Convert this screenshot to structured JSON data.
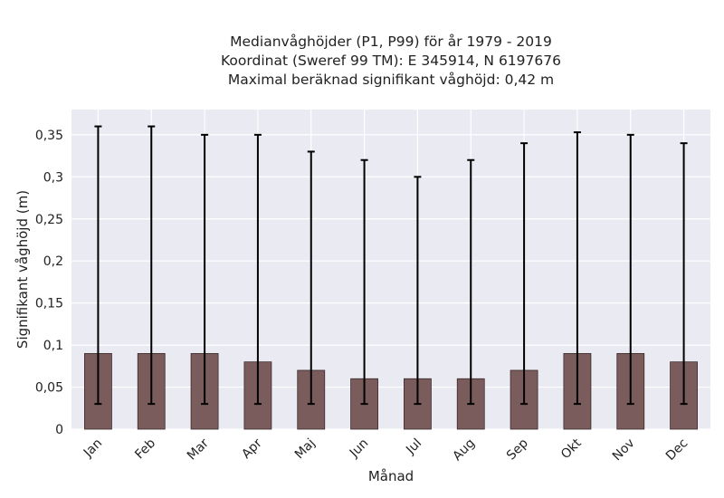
{
  "chart_data": {
    "type": "bar",
    "title_lines": [
      "Medianvåghöjder (P1, P99) för år 1979 - 2019",
      "Koordinat (Sweref 99 TM): E 345914, N 6197676",
      "Maximal beräknad signifikant våghöjd: 0,42 m"
    ],
    "xlabel": "Månad",
    "ylabel": "Signifikant våghöjd (m)",
    "categories": [
      "Jan",
      "Feb",
      "Mar",
      "Apr",
      "Maj",
      "Jun",
      "Jul",
      "Aug",
      "Sep",
      "Okt",
      "Nov",
      "Dec"
    ],
    "values": [
      0.09,
      0.09,
      0.09,
      0.08,
      0.07,
      0.06,
      0.06,
      0.06,
      0.07,
      0.09,
      0.09,
      0.08
    ],
    "error_low": [
      0.03,
      0.03,
      0.03,
      0.03,
      0.03,
      0.03,
      0.03,
      0.03,
      0.03,
      0.03,
      0.03,
      0.03
    ],
    "error_high": [
      0.36,
      0.36,
      0.35,
      0.35,
      0.33,
      0.32,
      0.3,
      0.32,
      0.34,
      0.353,
      0.35,
      0.34
    ],
    "ylim": [
      0,
      0.38
    ],
    "yticks": [
      0,
      0.05,
      0.1,
      0.15,
      0.2,
      0.25,
      0.3,
      0.35
    ],
    "ytick_labels": [
      "0",
      "0,05",
      "0,1",
      "0,15",
      "0,2",
      "0,25",
      "0,3",
      "0,35"
    ],
    "grid": true,
    "colors": {
      "bar": "#7b5c5c",
      "bar_edge": "#3a2a2a",
      "plot_bg": "#eaeaf2",
      "grid": "#ffffff",
      "errorbar": "#000000"
    }
  }
}
